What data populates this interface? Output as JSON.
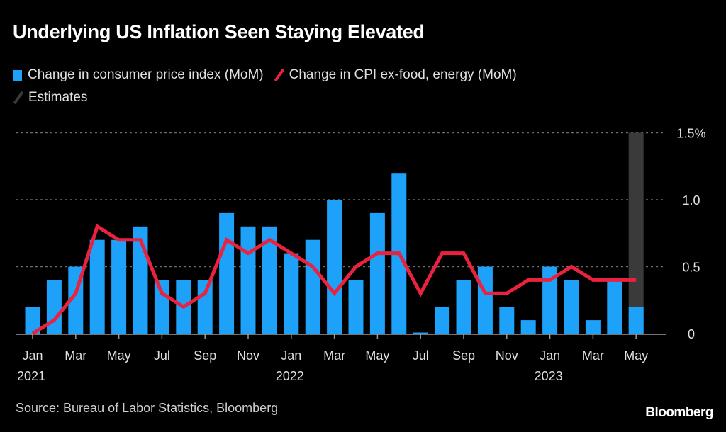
{
  "title": "Underlying US Inflation Seen Staying Elevated",
  "legend": [
    {
      "label": "Change in consumer price index (MoM)",
      "color": "#1da1f9",
      "kind": "bar"
    },
    {
      "label": "Change in CPI ex-food, energy (MoM)",
      "color": "#e8223f",
      "kind": "line"
    },
    {
      "label": "Estimates",
      "color": "#3a3a3a",
      "kind": "line"
    }
  ],
  "source": "Source: Bureau of Labor Statistics, Bloomberg",
  "brand": "Bloomberg",
  "colors": {
    "bar": "#1da1f9",
    "line": "#e8223f",
    "estimate": "#3a3a3a",
    "grid": "#6b6b6b",
    "axis": "#9a9a9a",
    "text": "#e0e0e0"
  },
  "chart_data": {
    "type": "bar",
    "title": "Underlying US Inflation Seen Staying Elevated",
    "xlabel": "",
    "ylabel": "",
    "ylim": [
      0,
      1.5
    ],
    "y_ticks": [
      0,
      0.5,
      1.0,
      1.5
    ],
    "y_tick_labels": [
      "0",
      "0.5",
      "1.0",
      "1.5%"
    ],
    "grid": true,
    "legend_position": "top-left",
    "categories": [
      "2021-01",
      "2021-02",
      "2021-03",
      "2021-04",
      "2021-05",
      "2021-06",
      "2021-07",
      "2021-08",
      "2021-09",
      "2021-10",
      "2021-11",
      "2021-12",
      "2022-01",
      "2022-02",
      "2022-03",
      "2022-04",
      "2022-05",
      "2022-06",
      "2022-07",
      "2022-08",
      "2022-09",
      "2022-10",
      "2022-11",
      "2022-12",
      "2023-01",
      "2023-02",
      "2023-03",
      "2023-04",
      "2023-05"
    ],
    "x_tick_labels": [
      {
        "index": 0,
        "month": "Jan",
        "year": "2021"
      },
      {
        "index": 2,
        "month": "Mar",
        "year": ""
      },
      {
        "index": 4,
        "month": "May",
        "year": ""
      },
      {
        "index": 6,
        "month": "Jul",
        "year": ""
      },
      {
        "index": 8,
        "month": "Sep",
        "year": ""
      },
      {
        "index": 10,
        "month": "Nov",
        "year": ""
      },
      {
        "index": 12,
        "month": "Jan",
        "year": "2022"
      },
      {
        "index": 14,
        "month": "Mar",
        "year": ""
      },
      {
        "index": 16,
        "month": "May",
        "year": ""
      },
      {
        "index": 18,
        "month": "Jul",
        "year": ""
      },
      {
        "index": 20,
        "month": "Sep",
        "year": ""
      },
      {
        "index": 22,
        "month": "Nov",
        "year": ""
      },
      {
        "index": 24,
        "month": "Jan",
        "year": "2023"
      },
      {
        "index": 26,
        "month": "Mar",
        "year": ""
      },
      {
        "index": 28,
        "month": "May",
        "year": ""
      }
    ],
    "series": [
      {
        "name": "Change in consumer price index (MoM)",
        "type": "bar",
        "values": [
          0.2,
          0.4,
          0.5,
          0.7,
          0.7,
          0.8,
          0.4,
          0.4,
          0.4,
          0.9,
          0.8,
          0.8,
          0.6,
          0.7,
          1.0,
          0.4,
          0.9,
          1.2,
          0.0,
          0.2,
          0.4,
          0.5,
          0.2,
          0.1,
          0.5,
          0.4,
          0.1,
          0.4,
          0.2
        ]
      },
      {
        "name": "Change in CPI ex-food, energy (MoM)",
        "type": "line",
        "values": [
          0.0,
          0.1,
          0.3,
          0.8,
          0.7,
          0.7,
          0.3,
          0.2,
          0.3,
          0.7,
          0.6,
          0.7,
          0.6,
          0.5,
          0.3,
          0.5,
          0.6,
          0.6,
          0.3,
          0.6,
          0.6,
          0.3,
          0.3,
          0.4,
          0.4,
          0.5,
          0.4,
          0.4,
          0.4
        ]
      }
    ],
    "estimates": {
      "index": 28,
      "label": "Estimates",
      "span": [
        0,
        1.5
      ]
    }
  }
}
